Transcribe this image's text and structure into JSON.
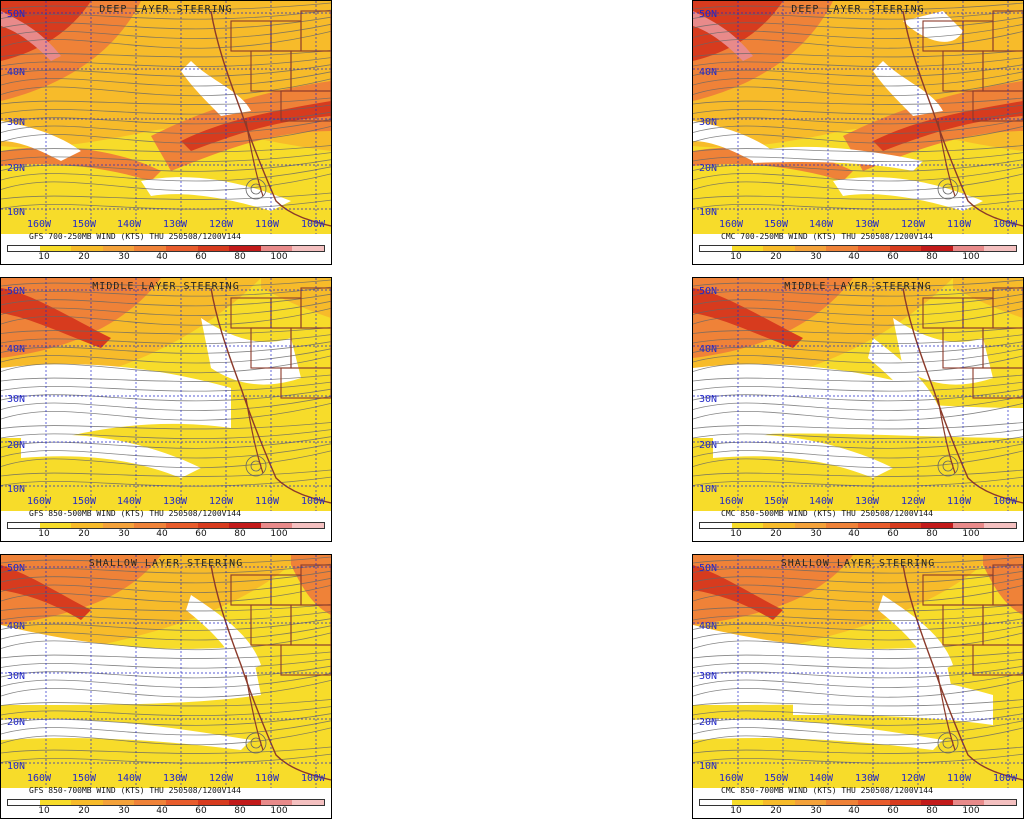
{
  "panels": [
    {
      "id": "gfs-deep",
      "model": "GFS",
      "title": "DEEP LAYER STEERING",
      "caption": "GFS 700-250MB WIND (KTS) THU 250508/1200V144",
      "style": "deep"
    },
    {
      "id": "cmc-deep",
      "model": "CMC",
      "title": "DEEP LAYER STEERING",
      "caption": "CMC 700-250MB WIND (KTS) THU 250508/1200V144",
      "style": "deep"
    },
    {
      "id": "gfs-middle",
      "model": "GFS",
      "title": "MIDDLE LAYER STEERING",
      "caption": "GFS 850-500MB WIND (KTS) THU 250508/1200V144",
      "style": "middle"
    },
    {
      "id": "cmc-middle",
      "model": "CMC",
      "title": "MIDDLE LAYER STEERING",
      "caption": "CMC 850-500MB WIND (KTS) THU 250508/1200V144",
      "style": "middle"
    },
    {
      "id": "gfs-shallow",
      "model": "GFS",
      "title": "SHALLOW LAYER STEERING",
      "caption": "GFS 850-700MB WIND (KTS) THU 250508/1200V144",
      "style": "shallow"
    },
    {
      "id": "cmc-shallow",
      "model": "CMC",
      "title": "SHALLOW LAYER STEERING",
      "caption": "CMC 850-700MB WIND (KTS) THU 250508/1200V144",
      "style": "shallow"
    }
  ],
  "latitude_labels": [
    "50N",
    "40N",
    "30N",
    "20N",
    "10N"
  ],
  "longitude_labels": [
    "160W",
    "150W",
    "140W",
    "130W",
    "120W",
    "110W",
    "100W"
  ],
  "colorbar": {
    "ticks": [
      "10",
      "20",
      "30",
      "40",
      "60",
      "80",
      "100"
    ],
    "colors": [
      "#ffffff",
      "#ffffff",
      "#f7dc2a",
      "#f7dc2a",
      "#f7bb2a",
      "#f7bb2a",
      "#f4a23a",
      "#f4a23a",
      "#ef8238",
      "#ef8238",
      "#e85c2c",
      "#e85c2c",
      "#d73b1e",
      "#d73b1e",
      "#c21a1a",
      "#c21a1a",
      "#e88a8a",
      "#e88a8a",
      "#f4c0c0",
      "#f4c0c0"
    ]
  },
  "colors": {
    "lat_lon_labels": "#2228c8",
    "coastline": "#8b3a2a",
    "streamline": "#666666",
    "grid": "#2228c8"
  }
}
